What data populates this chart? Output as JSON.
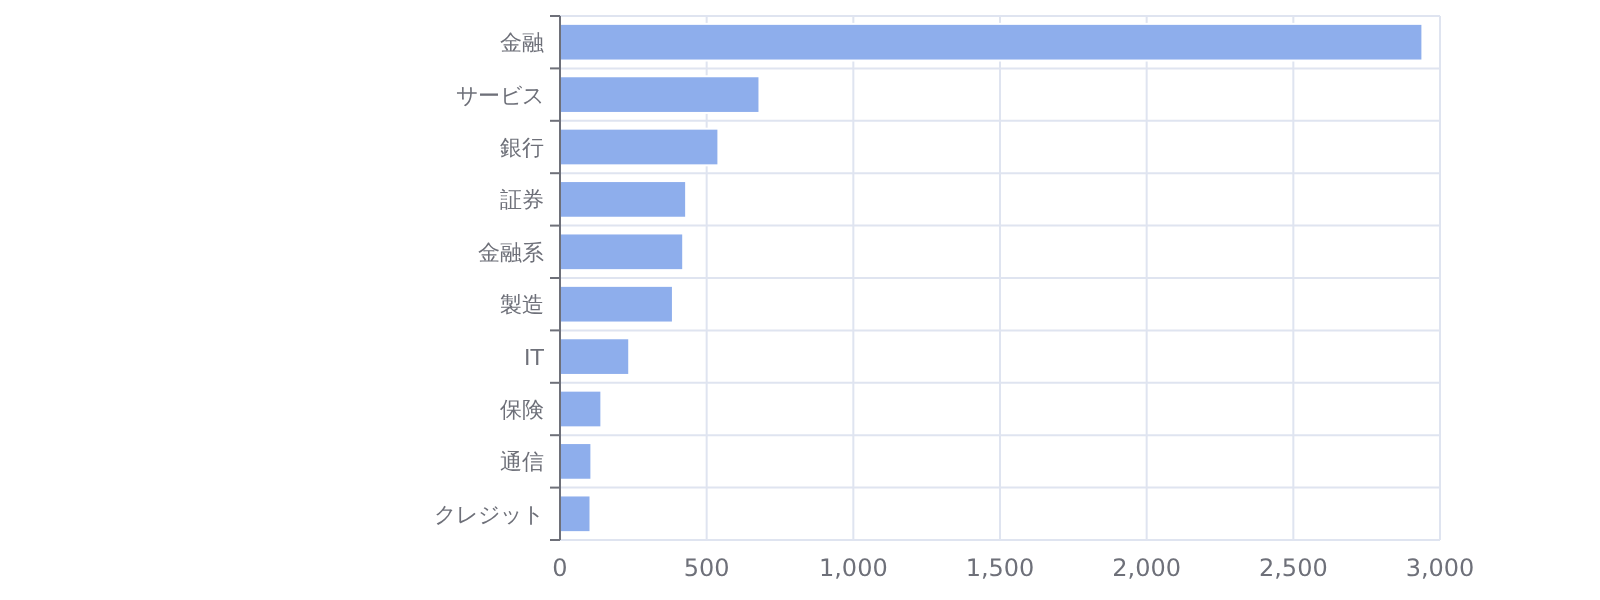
{
  "chart_data": {
    "type": "bar",
    "orientation": "horizontal",
    "categories": [
      "金融",
      "サービス",
      "銀行",
      "証券",
      "金融系",
      "製造",
      "IT",
      "保険",
      "通信",
      "クレジット"
    ],
    "series": [
      {
        "color": "#8eaeec",
        "values": [
          2940,
          680,
          540,
          430,
          420,
          385,
          236,
          141,
          107,
          104
        ]
      }
    ],
    "xlim": [
      0,
      3000
    ],
    "xticks": [
      {
        "value": 0,
        "label": "0"
      },
      {
        "value": 500,
        "label": "500"
      },
      {
        "value": 1000,
        "label": "1,000"
      },
      {
        "value": 1500,
        "label": "1,500"
      },
      {
        "value": 2000,
        "label": "2,000"
      },
      {
        "value": 2500,
        "label": "2,500"
      },
      {
        "value": 3000,
        "label": "3,000"
      }
    ],
    "grid": true
  }
}
